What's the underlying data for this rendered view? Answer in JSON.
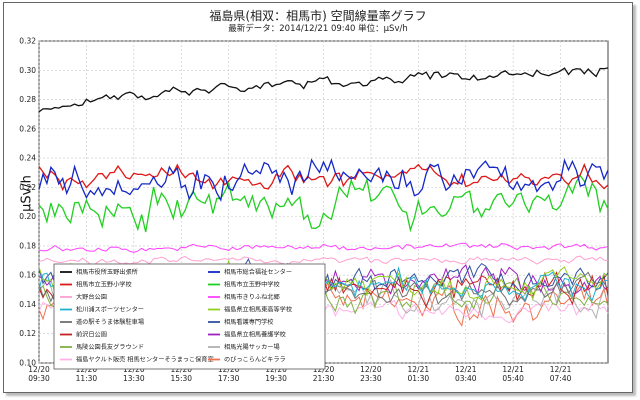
{
  "chart_data": {
    "type": "line",
    "title": "福島県(相双：相馬市) 空間線量率グラフ",
    "subtitle": "最新データ：2014/12/21  09:40    単位：μSv/h",
    "ylabel": "μSv/h",
    "ylim": [
      0.1,
      0.32
    ],
    "yticks": [
      "0.10",
      "0.12",
      "0.14",
      "0.16",
      "0.18",
      "0.20",
      "0.22",
      "0.24",
      "0.26",
      "0.28",
      "0.30",
      "0.32"
    ],
    "xtick_labels": [
      [
        "12/20",
        "09:30"
      ],
      [
        "12/20",
        "11:30"
      ],
      [
        "12/20",
        "13:30"
      ],
      [
        "12/20",
        "15:30"
      ],
      [
        "12/20",
        "17:30"
      ],
      [
        "12/20",
        "19:30"
      ],
      [
        "12/20",
        "21:30"
      ],
      [
        "12/20",
        "23:30"
      ],
      [
        "12/21",
        "01:30"
      ],
      [
        "12/21",
        "03:40"
      ],
      [
        "12/21",
        "05:40"
      ],
      [
        "12/21",
        "07:40"
      ]
    ],
    "grid": true,
    "legend_position": "bottom-left",
    "series": [
      {
        "name": "相馬市役所玉野出張所",
        "color": "#111111",
        "base": 0.271,
        "end": 0.3,
        "noise": 0.003
      },
      {
        "name": "相馬市総合福祉センター",
        "color": "#1428c8",
        "base": 0.226,
        "end": 0.226,
        "noise": 0.01
      },
      {
        "name": "相馬市立玉野小学校",
        "color": "#e01818",
        "base": 0.227,
        "end": 0.227,
        "noise": 0.006
      },
      {
        "name": "相馬市立玉野中学校",
        "color": "#20d020",
        "base": 0.203,
        "end": 0.212,
        "noise": 0.012
      },
      {
        "name": "大野台公園",
        "color": "#ffa0d0",
        "base": 0.17,
        "end": 0.17,
        "noise": 0.002
      },
      {
        "name": "相馬市きりふね北郷",
        "color": "#ff40ff",
        "base": 0.177,
        "end": 0.18,
        "noise": 0.002
      },
      {
        "name": "松川浦スポーツセンター",
        "color": "#20b0d0",
        "base": 0.153,
        "end": 0.153,
        "noise": 0.008
      },
      {
        "name": "福島県立相馬東高等学校",
        "color": "#90d020",
        "base": 0.156,
        "end": 0.156,
        "noise": 0.008
      },
      {
        "name": "道の駅そうま体験駐車場",
        "color": "#707070",
        "base": 0.15,
        "end": 0.15,
        "noise": 0.008
      },
      {
        "name": "相馬看護専門学校",
        "color": "#3050a0",
        "base": 0.158,
        "end": 0.158,
        "noise": 0.007
      },
      {
        "name": "前沢日公園",
        "color": "#c82020",
        "base": 0.15,
        "end": 0.15,
        "noise": 0.008
      },
      {
        "name": "福島県立相馬養護学校",
        "color": "#a020c0",
        "base": 0.157,
        "end": 0.157,
        "noise": 0.007
      },
      {
        "name": "馬陵公園長友グラウンド",
        "color": "#80b040",
        "base": 0.146,
        "end": 0.146,
        "noise": 0.008
      },
      {
        "name": "相馬光陽サッカー場",
        "color": "#b0b0b0",
        "base": 0.145,
        "end": 0.145,
        "noise": 0.008
      },
      {
        "name": "福島ヤクルト販売 相馬センターそうまっこ保育室",
        "color": "#ffb0e8",
        "base": 0.135,
        "end": 0.135,
        "noise": 0.005
      },
      {
        "name": "のびっこらんどキララ",
        "color": "#f07050",
        "base": 0.14,
        "end": 0.14,
        "noise": 0.009
      }
    ]
  }
}
